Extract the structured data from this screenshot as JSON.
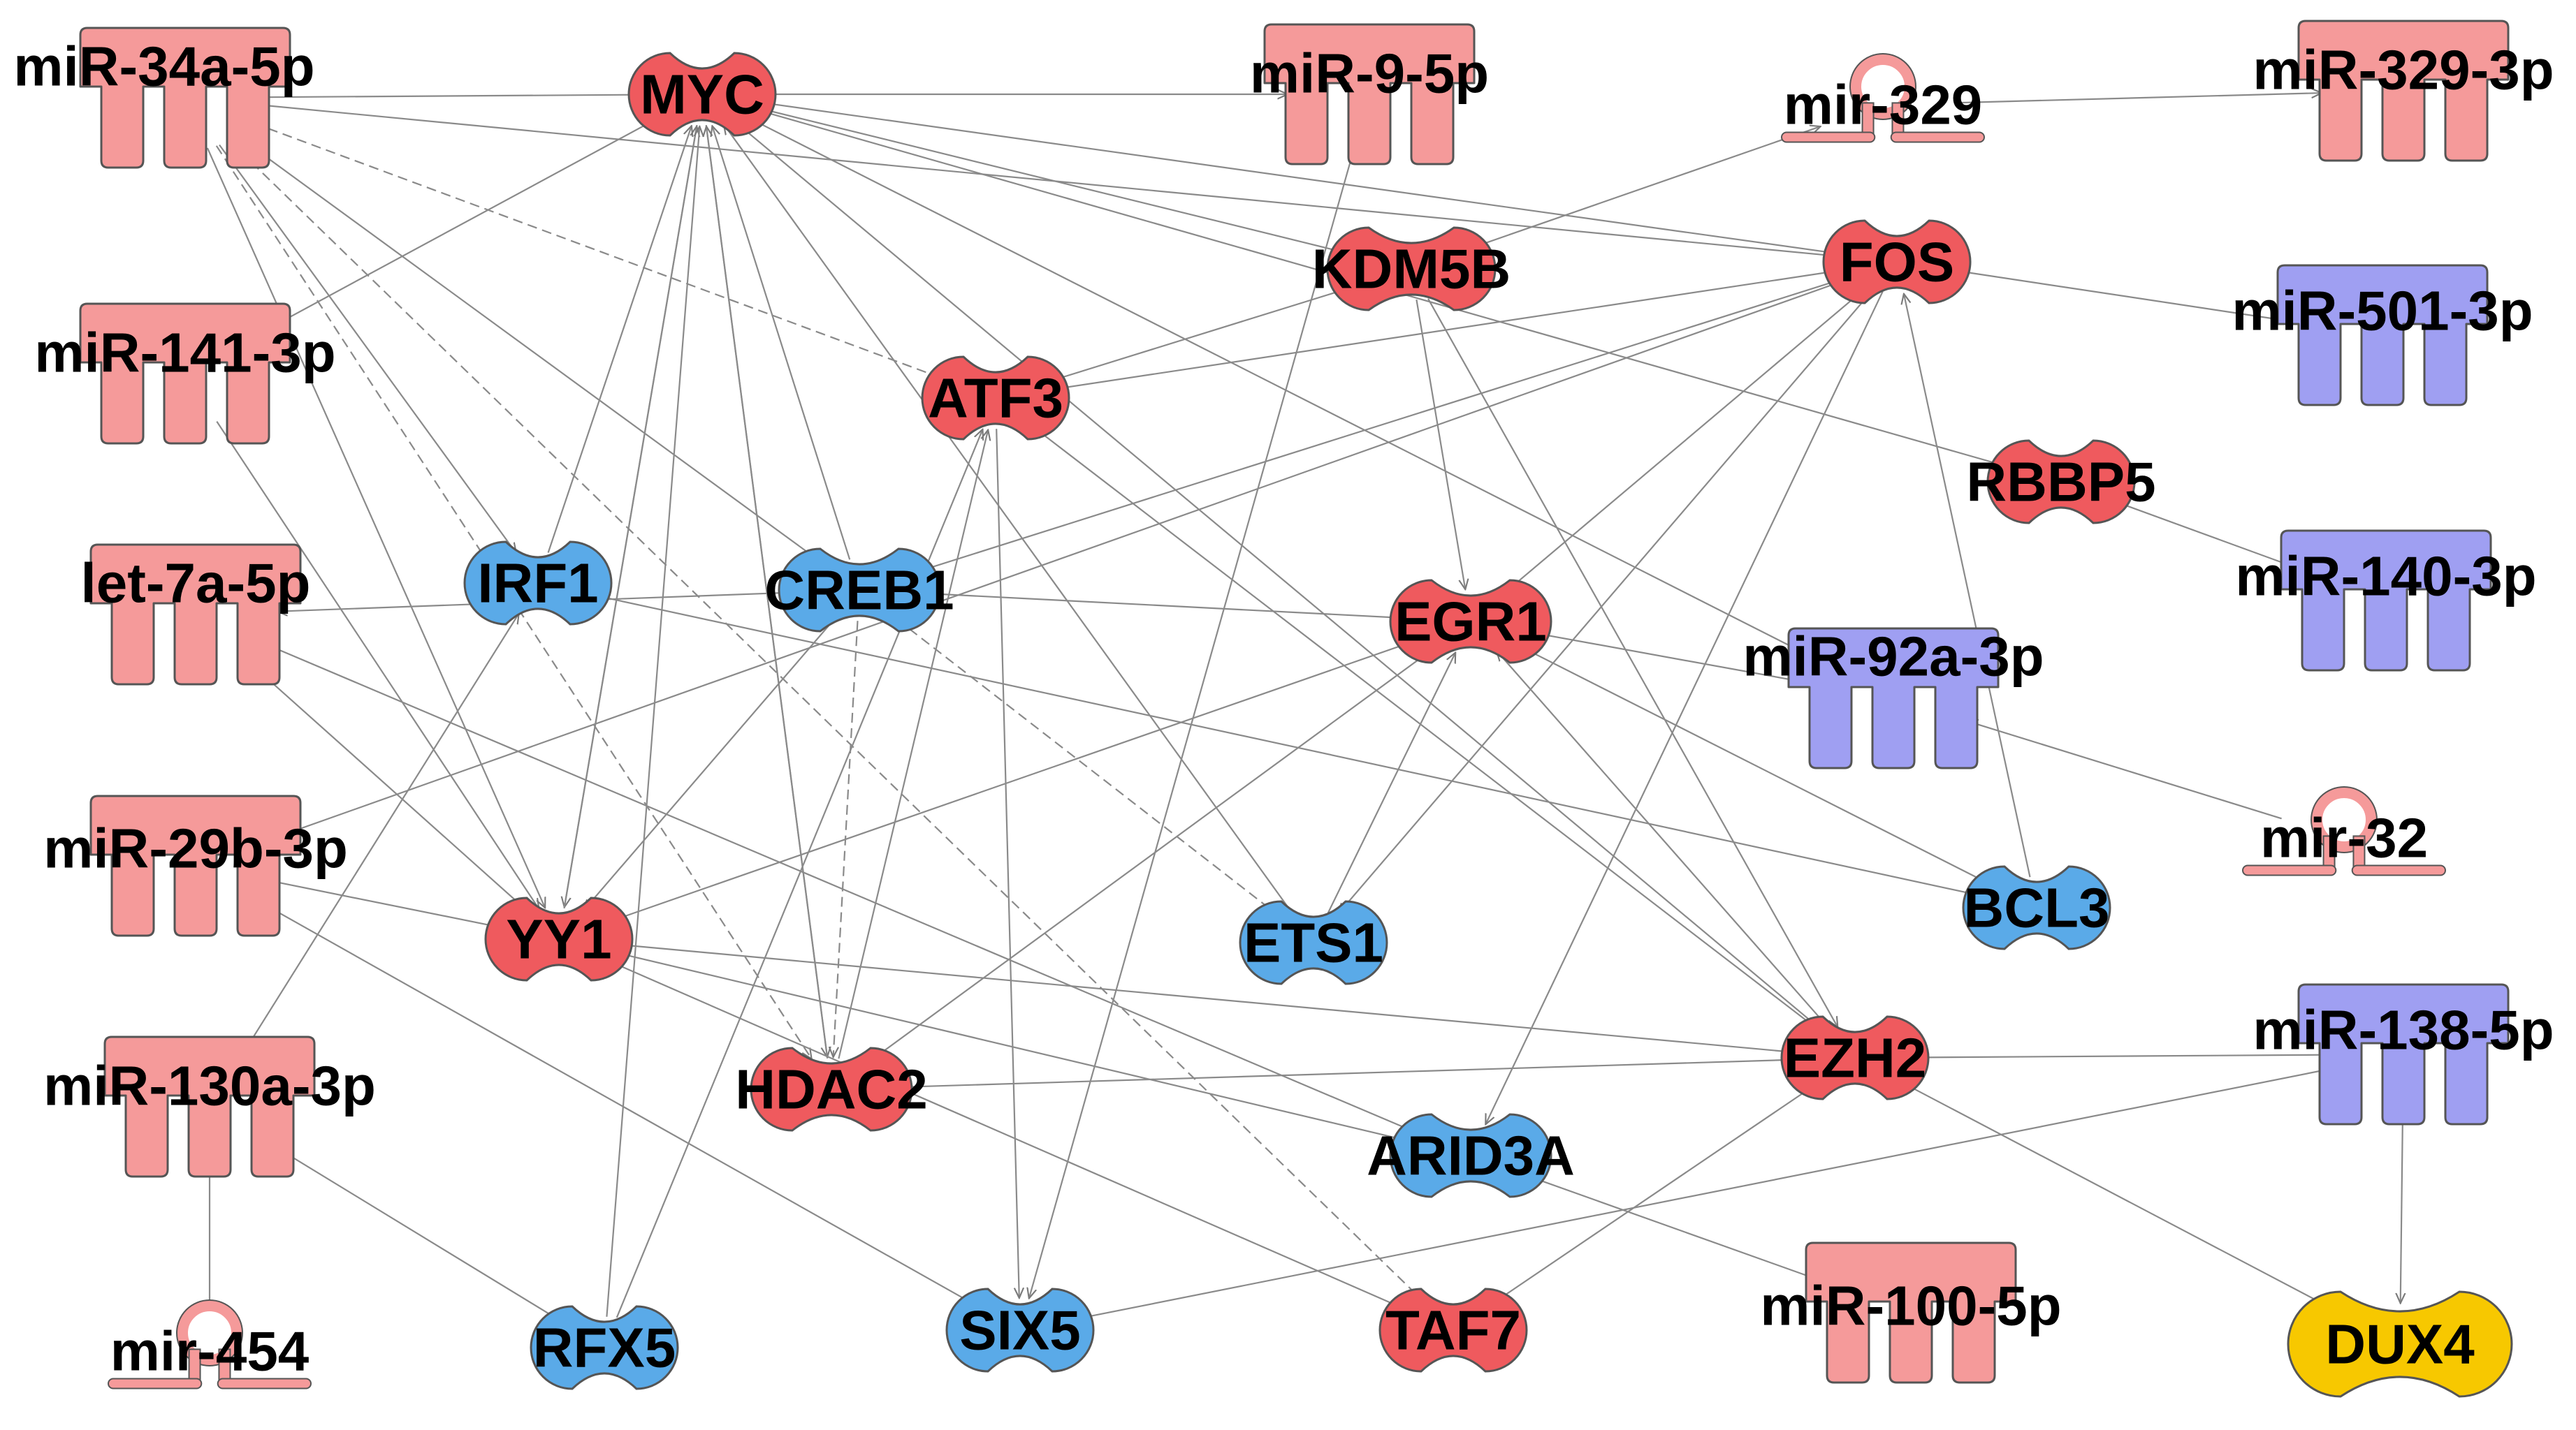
{
  "colors": {
    "mirna_up": "#f59a9a",
    "mirna_down": "#9f9ff2",
    "gene_up": "#ef5a5e",
    "gene_neutral": "#5aaae8",
    "gene_other": "#f7c800",
    "edge": "#8a8a8a",
    "outline": "#555555"
  },
  "nodes": [
    {
      "id": "n_mir34a",
      "label": "miR-34a-5p",
      "kind": "mature",
      "color": "mirna_up"
    },
    {
      "id": "n_mir141",
      "label": "miR-141-3p",
      "kind": "mature",
      "color": "mirna_up"
    },
    {
      "id": "n_let7a",
      "label": "let-7a-5p",
      "kind": "mature",
      "color": "mirna_up"
    },
    {
      "id": "n_mir29b",
      "label": "miR-29b-3p",
      "kind": "mature",
      "color": "mirna_up"
    },
    {
      "id": "n_mir130a",
      "label": "miR-130a-3p",
      "kind": "mature",
      "color": "mirna_up"
    },
    {
      "id": "n_mir454",
      "label": "mir-454",
      "kind": "hairpin",
      "color": "mirna_up"
    },
    {
      "id": "n_myc",
      "label": "MYC",
      "kind": "gene",
      "color": "gene_up"
    },
    {
      "id": "n_mir9",
      "label": "miR-9-5p",
      "kind": "mature",
      "color": "mirna_up"
    },
    {
      "id": "n_mir329",
      "label": "mir-329",
      "kind": "hairpin",
      "color": "mirna_up"
    },
    {
      "id": "n_mir329_3p",
      "label": "miR-329-3p",
      "kind": "mature",
      "color": "mirna_up"
    },
    {
      "id": "n_kdm5b",
      "label": "KDM5B",
      "kind": "gene",
      "color": "gene_up"
    },
    {
      "id": "n_fos",
      "label": "FOS",
      "kind": "gene",
      "color": "gene_up"
    },
    {
      "id": "n_mir501",
      "label": "miR-501-3p",
      "kind": "mature",
      "color": "mirna_down"
    },
    {
      "id": "n_atf3",
      "label": "ATF3",
      "kind": "gene",
      "color": "gene_up"
    },
    {
      "id": "n_rbbp5",
      "label": "RBBP5",
      "kind": "gene",
      "color": "gene_up"
    },
    {
      "id": "n_mir140",
      "label": "miR-140-3p",
      "kind": "mature",
      "color": "mirna_down"
    },
    {
      "id": "n_irf1",
      "label": "IRF1",
      "kind": "gene",
      "color": "gene_neutral"
    },
    {
      "id": "n_creb1",
      "label": "CREB1",
      "kind": "gene",
      "color": "gene_neutral"
    },
    {
      "id": "n_egr1",
      "label": "EGR1",
      "kind": "gene",
      "color": "gene_up"
    },
    {
      "id": "n_mir92a",
      "label": "miR-92a-3p",
      "kind": "mature",
      "color": "mirna_down"
    },
    {
      "id": "n_mir32",
      "label": "mir-32",
      "kind": "hairpin",
      "color": "mirna_up"
    },
    {
      "id": "n_yy1",
      "label": "YY1",
      "kind": "gene",
      "color": "gene_up"
    },
    {
      "id": "n_ets1",
      "label": "ETS1",
      "kind": "gene",
      "color": "gene_neutral"
    },
    {
      "id": "n_bcl3",
      "label": "BCL3",
      "kind": "gene",
      "color": "gene_neutral"
    },
    {
      "id": "n_mir138",
      "label": "miR-138-5p",
      "kind": "mature",
      "color": "mirna_down"
    },
    {
      "id": "n_hdac2",
      "label": "HDAC2",
      "kind": "gene",
      "color": "gene_up"
    },
    {
      "id": "n_ezh2",
      "label": "EZH2",
      "kind": "gene",
      "color": "gene_up"
    },
    {
      "id": "n_arid3a",
      "label": "ARID3A",
      "kind": "gene",
      "color": "gene_neutral"
    },
    {
      "id": "n_rfx5",
      "label": "RFX5",
      "kind": "gene",
      "color": "gene_neutral"
    },
    {
      "id": "n_six5",
      "label": "SIX5",
      "kind": "gene",
      "color": "gene_neutral"
    },
    {
      "id": "n_taf7",
      "label": "TAF7",
      "kind": "gene",
      "color": "gene_up"
    },
    {
      "id": "n_mir100",
      "label": "miR-100-5p",
      "kind": "mature",
      "color": "mirna_up"
    },
    {
      "id": "n_dux4",
      "label": "DUX4",
      "kind": "gene",
      "color": "gene_other"
    }
  ],
  "edges": [
    {
      "from": "n_mir34a",
      "to": "n_myc"
    },
    {
      "from": "n_mir34a",
      "to": "n_atf3",
      "dashed": true
    },
    {
      "from": "n_mir34a",
      "to": "n_irf1"
    },
    {
      "from": "n_mir34a",
      "to": "n_creb1"
    },
    {
      "from": "n_mir34a",
      "to": "n_yy1"
    },
    {
      "from": "n_mir34a",
      "to": "n_fos"
    },
    {
      "from": "n_mir34a",
      "to": "n_hdac2",
      "dashed": true
    },
    {
      "from": "n_mir34a",
      "to": "n_taf7",
      "dashed": true
    },
    {
      "from": "n_myc",
      "to": "n_mir9"
    },
    {
      "from": "n_myc",
      "to": "n_mir141"
    },
    {
      "from": "n_myc",
      "to": "n_fos"
    },
    {
      "from": "n_myc",
      "to": "n_yy1"
    },
    {
      "from": "n_myc",
      "to": "n_hdac2"
    },
    {
      "from": "n_myc",
      "to": "n_mir92a"
    },
    {
      "from": "n_mir9",
      "to": "n_six5"
    },
    {
      "from": "n_mir329",
      "to": "n_mir329_3p"
    },
    {
      "from": "n_kdm5b",
      "to": "n_mir329"
    },
    {
      "from": "n_kdm5b",
      "to": "n_myc"
    },
    {
      "from": "n_kdm5b",
      "to": "n_atf3"
    },
    {
      "from": "n_kdm5b",
      "to": "n_egr1"
    },
    {
      "from": "n_kdm5b",
      "to": "n_ezh2"
    },
    {
      "from": "n_mir501",
      "to": "n_fos"
    },
    {
      "from": "n_mir140",
      "to": "n_rbbp5"
    },
    {
      "from": "n_rbbp5",
      "to": "n_myc"
    },
    {
      "from": "n_fos",
      "to": "n_atf3"
    },
    {
      "from": "n_fos",
      "to": "n_egr1"
    },
    {
      "from": "n_fos",
      "to": "n_ets1"
    },
    {
      "from": "n_fos",
      "to": "n_arid3a"
    },
    {
      "from": "n_creb1",
      "to": "n_fos"
    },
    {
      "from": "n_creb1",
      "to": "n_egr1"
    },
    {
      "from": "n_creb1",
      "to": "n_myc"
    },
    {
      "from": "n_creb1",
      "to": "n_hdac2",
      "dashed": true
    },
    {
      "from": "n_creb1",
      "to": "n_yy1"
    },
    {
      "from": "n_creb1",
      "to": "n_let7a"
    },
    {
      "from": "n_irf1",
      "to": "n_myc"
    },
    {
      "from": "n_mir141",
      "to": "n_yy1"
    },
    {
      "from": "n_let7a",
      "to": "n_yy1"
    },
    {
      "from": "n_let7a",
      "to": "n_arid3a"
    },
    {
      "from": "n_mir29b",
      "to": "n_yy1"
    },
    {
      "from": "n_mir29b",
      "to": "n_fos"
    },
    {
      "from": "n_mir29b",
      "to": "n_six5"
    },
    {
      "from": "n_yy1",
      "to": "n_myc"
    },
    {
      "from": "n_yy1",
      "to": "n_egr1"
    },
    {
      "from": "n_yy1",
      "to": "n_arid3a"
    },
    {
      "from": "n_yy1",
      "to": "n_ezh2"
    },
    {
      "from": "n_yy1",
      "to": "n_taf7"
    },
    {
      "from": "n_mir130a",
      "to": "n_irf1"
    },
    {
      "from": "n_mir130a",
      "to": "n_rfx5"
    },
    {
      "from": "n_mir454",
      "to": "n_mir130a"
    },
    {
      "from": "n_rfx5",
      "to": "n_myc"
    },
    {
      "from": "n_rfx5",
      "to": "n_atf3"
    },
    {
      "from": "n_hdac2",
      "to": "n_egr1"
    },
    {
      "from": "n_hdac2",
      "to": "n_myc"
    },
    {
      "from": "n_hdac2",
      "to": "n_atf3"
    },
    {
      "from": "n_ezh2",
      "to": "n_hdac2"
    },
    {
      "from": "n_ezh2",
      "to": "n_myc"
    },
    {
      "from": "n_ezh2",
      "to": "n_egr1"
    },
    {
      "from": "n_ezh2",
      "to": "n_atf3"
    },
    {
      "from": "n_ezh2",
      "to": "n_dux4"
    },
    {
      "from": "n_ezh2",
      "to": "n_taf7"
    },
    {
      "from": "n_ets1",
      "to": "n_creb1",
      "dashed": true
    },
    {
      "from": "n_ets1",
      "to": "n_egr1"
    },
    {
      "from": "n_ets1",
      "to": "n_myc"
    },
    {
      "from": "n_bcl3",
      "to": "n_fos"
    },
    {
      "from": "n_bcl3",
      "to": "n_irf1"
    },
    {
      "from": "n_bcl3",
      "to": "n_egr1"
    },
    {
      "from": "n_egr1",
      "to": "n_mir92a"
    },
    {
      "from": "n_mir32",
      "to": "n_mir92a"
    },
    {
      "from": "n_mir138",
      "to": "n_ezh2"
    },
    {
      "from": "n_mir138",
      "to": "n_dux4"
    },
    {
      "from": "n_mir138",
      "to": "n_six5"
    },
    {
      "from": "n_mir100",
      "to": "n_arid3a"
    },
    {
      "from": "n_atf3",
      "to": "n_six5"
    }
  ]
}
